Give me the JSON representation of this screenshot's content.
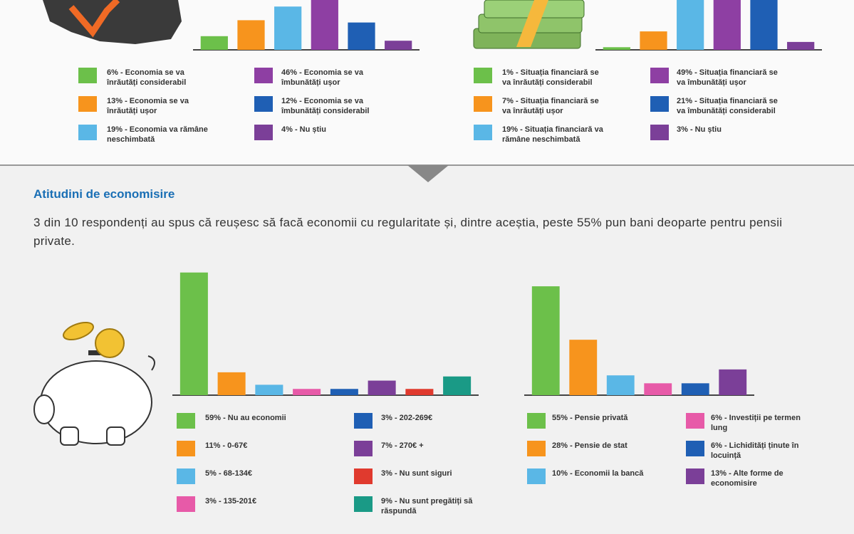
{
  "chart_data": [
    {
      "type": "bar",
      "categories": [
        "6% - Economia se va înrăutăți considerabil",
        "13% - Economia se va înrăutăți ușor",
        "19% - Economia va rămâne neschimbată",
        "46% - Economia se va îmbunătăți ușor",
        "12% - Economia se va îmbunătăți considerabil",
        "4% - Nu știu"
      ],
      "values": [
        6,
        13,
        19,
        46,
        12,
        4
      ],
      "colors": [
        "#6cc04a",
        "#f7941d",
        "#5ab7e6",
        "#8e3fa3",
        "#1f5fb4",
        "#7b3f98"
      ]
    },
    {
      "type": "bar",
      "categories": [
        "1% - Situația financiară se va înrăutăți considerabil",
        "7% - Situația financiară se va înrăutăți ușor",
        "19% - Situația financiară va rămâne neschimbată",
        "49% - Situația financiară se va îmbunătăți ușor",
        "21% - Situația financiară se va îmbunătăți considerabil",
        "3% - Nu știu"
      ],
      "values": [
        1,
        7,
        19,
        49,
        21,
        3
      ],
      "colors": [
        "#6cc04a",
        "#f7941d",
        "#5ab7e6",
        "#8e3fa3",
        "#1f5fb4",
        "#7b3f98"
      ]
    },
    {
      "type": "bar",
      "categories": [
        "59% - Nu au economii",
        "11% - 0-67€",
        "5% - 68-134€",
        "3% - 135-201€",
        "3% - 202-269€",
        "7% - 270€ +",
        "3% - Nu sunt siguri",
        "9% - Nu sunt pregătiți să răspundă"
      ],
      "values": [
        59,
        11,
        5,
        3,
        3,
        7,
        3,
        9
      ],
      "colors": [
        "#6cc04a",
        "#f7941d",
        "#5ab7e6",
        "#e75aa8",
        "#1f5fb4",
        "#7b3f98",
        "#e03a2e",
        "#1a9a86"
      ]
    },
    {
      "type": "bar",
      "categories": [
        "55% - Pensie privată",
        "28% - Pensie de stat",
        "10% - Economii la bancă",
        "6% - Investiții pe termen lung",
        "6% - Lichidități ținute în locuință",
        "13% - Alte forme de economisire"
      ],
      "values": [
        55,
        28,
        10,
        6,
        6,
        13
      ],
      "colors": [
        "#6cc04a",
        "#f7941d",
        "#5ab7e6",
        "#e75aa8",
        "#1f5fb4",
        "#7b3f98"
      ]
    }
  ],
  "section": {
    "title": "Atitudini de economisire",
    "text": "3 din 10 respondenți au spus că reușesc să facă economii cu regularitate și, dintre aceștia, peste 55% pun bani deoparte pentru pensii private."
  }
}
